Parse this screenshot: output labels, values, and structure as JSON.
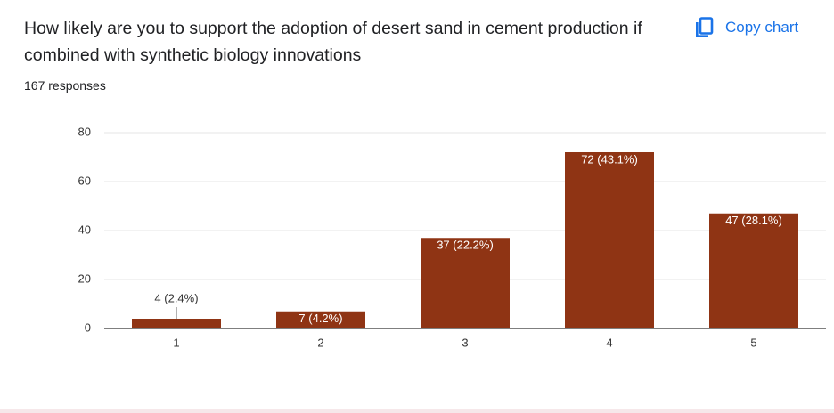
{
  "button": "Copy chart",
  "chart_data": {
    "type": "bar",
    "title": "How likely are you to support the adoption of desert sand in cement production if combined with synthetic biology innovations",
    "subtitle": "167 responses",
    "categories": [
      "1",
      "2",
      "3",
      "4",
      "5"
    ],
    "values": [
      4,
      7,
      37,
      72,
      47
    ],
    "value_labels": [
      "4 (2.4%)",
      "7 (4.2%)",
      "37 (22.2%)",
      "72 (43.1%)",
      "47 (28.1%)"
    ],
    "color": "#8f3414",
    "ylim": [
      0,
      80
    ],
    "yticks": [
      0,
      20,
      40,
      60,
      80
    ],
    "grid": true
  }
}
